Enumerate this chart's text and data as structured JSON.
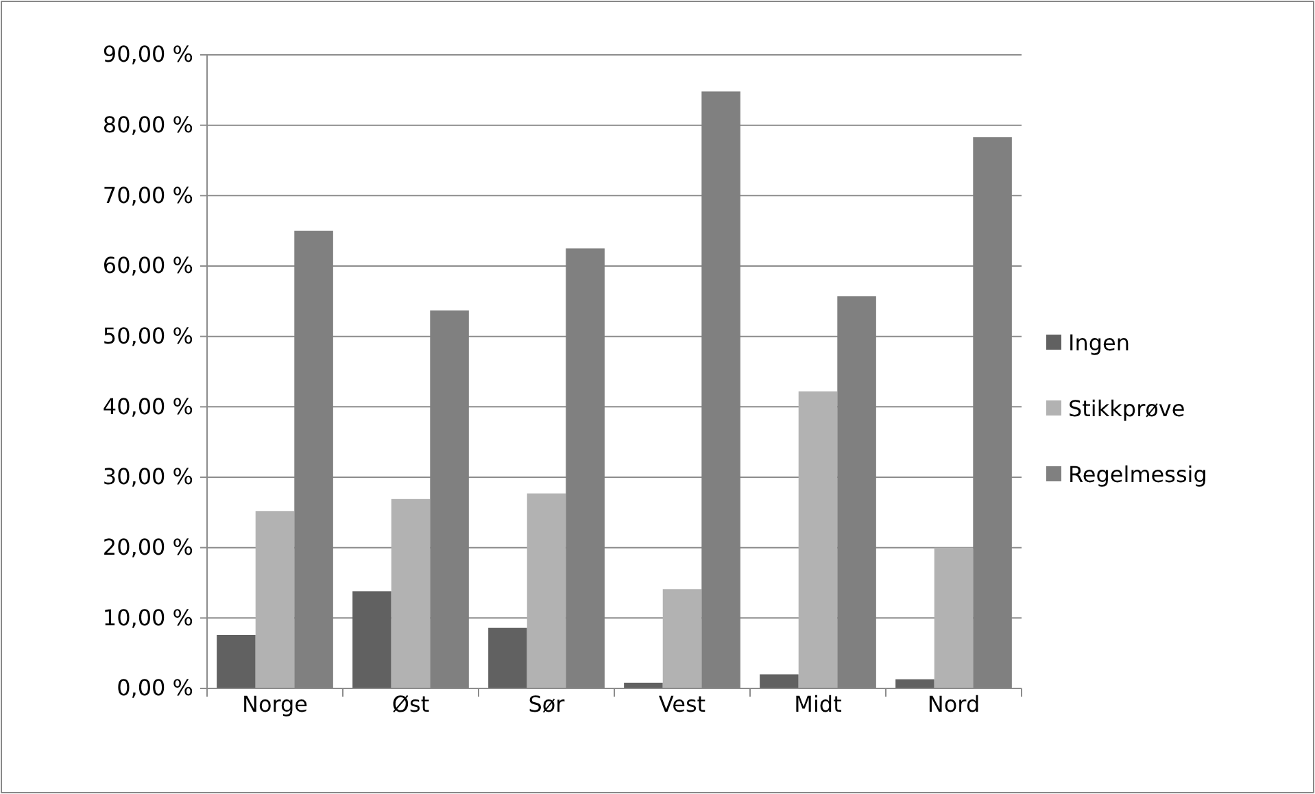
{
  "chart_data": {
    "type": "bar",
    "categories": [
      "Norge",
      "Øst",
      "Sør",
      "Vest",
      "Midt",
      "Nord"
    ],
    "series": [
      {
        "name": "Ingen",
        "color": "#616161",
        "values": [
          7.6,
          13.8,
          8.6,
          0.8,
          2.0,
          1.3
        ]
      },
      {
        "name": "Stikkprøve",
        "color": "#b2b2b2",
        "values": [
          25.2,
          26.9,
          27.7,
          14.1,
          42.2,
          20.0
        ]
      },
      {
        "name": "Regelmessig",
        "color": "#808080",
        "values": [
          65.0,
          53.7,
          62.5,
          84.8,
          55.7,
          78.3
        ]
      }
    ],
    "ylim": [
      0,
      90
    ],
    "yticks": [
      {
        "value": 0,
        "label": "0,00 %"
      },
      {
        "value": 10,
        "label": "10,00 %"
      },
      {
        "value": 20,
        "label": "20,00 %"
      },
      {
        "value": 30,
        "label": "30,00 %"
      },
      {
        "value": 40,
        "label": "40,00 %"
      },
      {
        "value": 50,
        "label": "50,00 %"
      },
      {
        "value": 60,
        "label": "60,00 %"
      },
      {
        "value": 70,
        "label": "70,00 %"
      },
      {
        "value": 80,
        "label": "80,00 %"
      },
      {
        "value": 90,
        "label": "90,00 %"
      }
    ],
    "grid": "y",
    "legend": "right"
  }
}
